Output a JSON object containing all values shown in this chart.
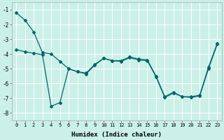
{
  "xlabel": "Humidex (Indice chaleur)",
  "ylabel": "",
  "bg_color": "#caf0e8",
  "line_color": "#006666",
  "grid_color": "#ffffff",
  "xlim": [
    -0.5,
    23.5
  ],
  "ylim": [
    -8.5,
    -0.5
  ],
  "yticks": [
    -8,
    -7,
    -6,
    -5,
    -4,
    -3,
    -2,
    -1
  ],
  "xticks": [
    0,
    1,
    2,
    3,
    4,
    5,
    6,
    7,
    8,
    9,
    10,
    11,
    12,
    13,
    14,
    15,
    16,
    17,
    18,
    19,
    20,
    21,
    22,
    23
  ],
  "line1_x": [
    0,
    1,
    2,
    3,
    4,
    5,
    6,
    7,
    8,
    9,
    10,
    11,
    12,
    13,
    14,
    15,
    16,
    17,
    18,
    19,
    20,
    21,
    22,
    23
  ],
  "line1_y": [
    -1.2,
    -1.7,
    -2.5,
    -3.9,
    -4.0,
    -4.5,
    -5.0,
    -5.2,
    -5.3,
    -4.7,
    -4.3,
    -4.45,
    -4.45,
    -4.2,
    -4.35,
    -4.4,
    -5.5,
    -6.9,
    -6.6,
    -6.9,
    -6.9,
    -6.8,
    -4.9,
    -3.3
  ],
  "line2_x": [
    0,
    1,
    2,
    3,
    4,
    5,
    6,
    7,
    8,
    9,
    10,
    11,
    12,
    13,
    14,
    15,
    16,
    17,
    18,
    19,
    20,
    21,
    22,
    23
  ],
  "line2_y": [
    -3.7,
    -3.85,
    -3.95,
    -4.05,
    -7.55,
    -7.3,
    -5.0,
    -5.2,
    -5.35,
    -4.75,
    -4.3,
    -4.45,
    -4.5,
    -4.25,
    -4.4,
    -4.45,
    -5.55,
    -6.95,
    -6.65,
    -6.9,
    -6.95,
    -6.85,
    -5.0,
    -3.35
  ]
}
